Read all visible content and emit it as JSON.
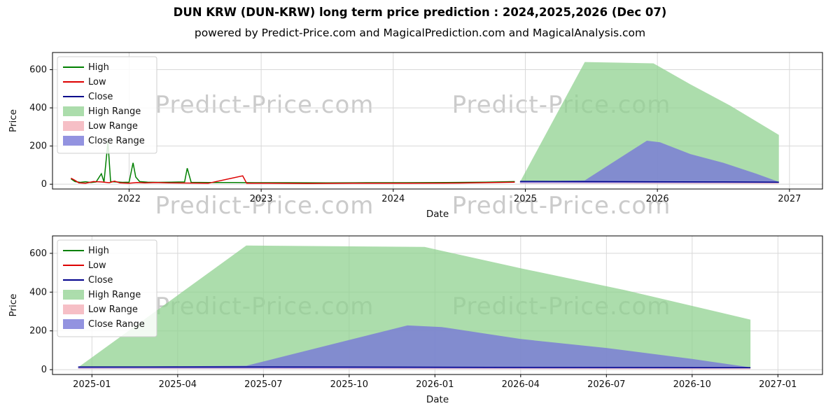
{
  "header": {
    "title": "DUN KRW (DUN-KRW) long term price prediction : 2024,2025,2026 (Dec 07)",
    "subtitle": "powered by Predict-Price.com and MagicalPrediction.com and MagicalAnalysis.com"
  },
  "watermark": {
    "text": "Predict-Price.com",
    "color": "#cbcbcb"
  },
  "chart_data": [
    {
      "type": "line",
      "title": "",
      "xlabel": "Date",
      "ylabel": "Price",
      "xlim": [
        2021.42,
        2027.25
      ],
      "ylim": [
        -25,
        690
      ],
      "grid": true,
      "legend_position": "upper-left",
      "xticks": [
        {
          "v": 2022,
          "label": "2022"
        },
        {
          "v": 2023,
          "label": "2023"
        },
        {
          "v": 2024,
          "label": "2024"
        },
        {
          "v": 2025,
          "label": "2025"
        },
        {
          "v": 2026,
          "label": "2026"
        },
        {
          "v": 2027,
          "label": "2027"
        }
      ],
      "yticks": [
        {
          "v": 0,
          "label": "0"
        },
        {
          "v": 200,
          "label": "200"
        },
        {
          "v": 400,
          "label": "400"
        },
        {
          "v": 600,
          "label": "600"
        }
      ],
      "legend": [
        {
          "label": "High",
          "kind": "line",
          "color": "#008000"
        },
        {
          "label": "Low",
          "kind": "line",
          "color": "#dd0000"
        },
        {
          "label": "Close",
          "kind": "line",
          "color": "#00008b"
        },
        {
          "label": "High Range",
          "kind": "patch",
          "color": "#90d290",
          "opacity": 0.75
        },
        {
          "label": "Low Range",
          "kind": "patch",
          "color": "#f5b8c0",
          "opacity": 0.9
        },
        {
          "label": "Close Range",
          "kind": "patch",
          "color": "#7878d8",
          "opacity": 0.8
        }
      ],
      "areas": [
        {
          "name": "High Range",
          "color": "#90d290",
          "opacity": 0.75,
          "points": [
            [
              2024.96,
              12
            ],
            [
              2025.45,
              640
            ],
            [
              2025.97,
              633
            ],
            [
              2026.25,
              523
            ],
            [
              2026.55,
              412
            ],
            [
              2026.92,
              258
            ],
            [
              2026.92,
              10
            ],
            [
              2026.55,
              10
            ],
            [
              2025.97,
              11
            ],
            [
              2025.45,
              12
            ],
            [
              2024.96,
              12
            ]
          ]
        },
        {
          "name": "Low Range",
          "color": "#f5b8c0",
          "opacity": 0.9,
          "points": [
            [
              2024.96,
              10
            ],
            [
              2025.45,
              9
            ],
            [
              2025.97,
              8
            ],
            [
              2026.5,
              7
            ],
            [
              2026.92,
              6
            ],
            [
              2026.92,
              2
            ],
            [
              2025.97,
              3
            ],
            [
              2025.45,
              4
            ],
            [
              2024.96,
              4
            ]
          ]
        },
        {
          "name": "Close Range",
          "color": "#7878d8",
          "opacity": 0.8,
          "points": [
            [
              2024.96,
              14
            ],
            [
              2025.45,
              20
            ],
            [
              2025.92,
              228
            ],
            [
              2026.02,
              220
            ],
            [
              2026.25,
              158
            ],
            [
              2026.5,
              112
            ],
            [
              2026.75,
              55
            ],
            [
              2026.92,
              12
            ],
            [
              2026.92,
              6
            ],
            [
              2026.5,
              6
            ],
            [
              2025.92,
              6
            ],
            [
              2025.45,
              6
            ],
            [
              2024.96,
              6
            ]
          ]
        }
      ],
      "series": [
        {
          "name": "High",
          "color": "#008000",
          "points": [
            [
              2021.56,
              28
            ],
            [
              2021.59,
              14
            ],
            [
              2021.63,
              10
            ],
            [
              2021.67,
              13
            ],
            [
              2021.71,
              9
            ],
            [
              2021.75,
              12
            ],
            [
              2021.79,
              55
            ],
            [
              2021.81,
              12
            ],
            [
              2021.84,
              222
            ],
            [
              2021.86,
              14
            ],
            [
              2021.9,
              12
            ],
            [
              2021.95,
              10
            ],
            [
              2022.0,
              11
            ],
            [
              2022.03,
              112
            ],
            [
              2022.05,
              38
            ],
            [
              2022.08,
              14
            ],
            [
              2022.14,
              11
            ],
            [
              2022.22,
              10
            ],
            [
              2022.32,
              11
            ],
            [
              2022.42,
              12
            ],
            [
              2022.44,
              84
            ],
            [
              2022.47,
              10
            ],
            [
              2022.6,
              9
            ],
            [
              2022.8,
              9
            ],
            [
              2022.95,
              8
            ],
            [
              2023.2,
              8
            ],
            [
              2023.5,
              7
            ],
            [
              2023.8,
              8
            ],
            [
              2024.1,
              8
            ],
            [
              2024.4,
              9
            ],
            [
              2024.7,
              11
            ],
            [
              2024.92,
              14
            ]
          ]
        },
        {
          "name": "Low",
          "color": "#dd0000",
          "points": [
            [
              2021.56,
              32
            ],
            [
              2021.59,
              20
            ],
            [
              2021.62,
              7
            ],
            [
              2021.67,
              5
            ],
            [
              2021.73,
              14
            ],
            [
              2021.79,
              12
            ],
            [
              2021.85,
              8
            ],
            [
              2021.89,
              16
            ],
            [
              2021.93,
              7
            ],
            [
              2022.0,
              5
            ],
            [
              2022.06,
              9
            ],
            [
              2022.12,
              7
            ],
            [
              2022.2,
              9
            ],
            [
              2022.3,
              7
            ],
            [
              2022.45,
              6
            ],
            [
              2022.6,
              5
            ],
            [
              2022.86,
              44
            ],
            [
              2022.89,
              5
            ],
            [
              2023.05,
              5
            ],
            [
              2023.35,
              4
            ],
            [
              2023.7,
              5
            ],
            [
              2024.1,
              5
            ],
            [
              2024.5,
              6
            ],
            [
              2024.92,
              11
            ]
          ]
        },
        {
          "name": "Close",
          "color": "#00008b",
          "points": [
            [
              2024.96,
              15
            ],
            [
              2025.45,
              14
            ],
            [
              2025.92,
              13
            ],
            [
              2026.5,
              12
            ],
            [
              2026.92,
              11
            ]
          ]
        }
      ]
    },
    {
      "type": "line",
      "title": "",
      "xlabel": "Date",
      "ylabel": "Price",
      "xlim": [
        2024.885,
        2027.13
      ],
      "ylim": [
        -25,
        690
      ],
      "grid": true,
      "legend_position": "upper-left",
      "xticks": [
        {
          "v": 2025.0,
          "label": "2025-01"
        },
        {
          "v": 2025.25,
          "label": "2025-04"
        },
        {
          "v": 2025.5,
          "label": "2025-07"
        },
        {
          "v": 2025.75,
          "label": "2025-10"
        },
        {
          "v": 2026.0,
          "label": "2026-01"
        },
        {
          "v": 2026.25,
          "label": "2026-04"
        },
        {
          "v": 2026.5,
          "label": "2026-07"
        },
        {
          "v": 2026.75,
          "label": "2026-10"
        },
        {
          "v": 2027.0,
          "label": "2027-01"
        }
      ],
      "yticks": [
        {
          "v": 0,
          "label": "0"
        },
        {
          "v": 200,
          "label": "200"
        },
        {
          "v": 400,
          "label": "400"
        },
        {
          "v": 600,
          "label": "600"
        }
      ],
      "legend": [
        {
          "label": "High",
          "kind": "line",
          "color": "#008000"
        },
        {
          "label": "Low",
          "kind": "line",
          "color": "#dd0000"
        },
        {
          "label": "Close",
          "kind": "line",
          "color": "#00008b"
        },
        {
          "label": "High Range",
          "kind": "patch",
          "color": "#90d290",
          "opacity": 0.75
        },
        {
          "label": "Low Range",
          "kind": "patch",
          "color": "#f5b8c0",
          "opacity": 0.9
        },
        {
          "label": "Close Range",
          "kind": "patch",
          "color": "#7878d8",
          "opacity": 0.8
        }
      ],
      "areas": [
        {
          "name": "High Range",
          "color": "#90d290",
          "opacity": 0.75,
          "points": [
            [
              2024.96,
              12
            ],
            [
              2025.45,
              640
            ],
            [
              2025.97,
              633
            ],
            [
              2026.25,
              523
            ],
            [
              2026.55,
              412
            ],
            [
              2026.92,
              258
            ],
            [
              2026.92,
              10
            ],
            [
              2026.55,
              10
            ],
            [
              2025.97,
              11
            ],
            [
              2025.45,
              12
            ],
            [
              2024.96,
              12
            ]
          ]
        },
        {
          "name": "Low Range",
          "color": "#f5b8c0",
          "opacity": 0.9,
          "points": [
            [
              2024.96,
              10
            ],
            [
              2025.45,
              9
            ],
            [
              2025.97,
              8
            ],
            [
              2026.5,
              7
            ],
            [
              2026.92,
              6
            ],
            [
              2026.92,
              2
            ],
            [
              2025.97,
              3
            ],
            [
              2025.45,
              4
            ],
            [
              2024.96,
              4
            ]
          ]
        },
        {
          "name": "Close Range",
          "color": "#7878d8",
          "opacity": 0.8,
          "points": [
            [
              2024.96,
              14
            ],
            [
              2025.45,
              20
            ],
            [
              2025.92,
              228
            ],
            [
              2026.02,
              220
            ],
            [
              2026.25,
              158
            ],
            [
              2026.5,
              112
            ],
            [
              2026.75,
              55
            ],
            [
              2026.92,
              12
            ],
            [
              2026.92,
              6
            ],
            [
              2026.5,
              6
            ],
            [
              2025.92,
              6
            ],
            [
              2025.45,
              6
            ],
            [
              2024.96,
              6
            ]
          ]
        }
      ],
      "series": [
        {
          "name": "Close",
          "color": "#00008b",
          "points": [
            [
              2024.96,
              14
            ],
            [
              2025.45,
              14
            ],
            [
              2025.92,
              13
            ],
            [
              2026.5,
              11
            ],
            [
              2026.92,
              10
            ]
          ]
        }
      ]
    }
  ]
}
